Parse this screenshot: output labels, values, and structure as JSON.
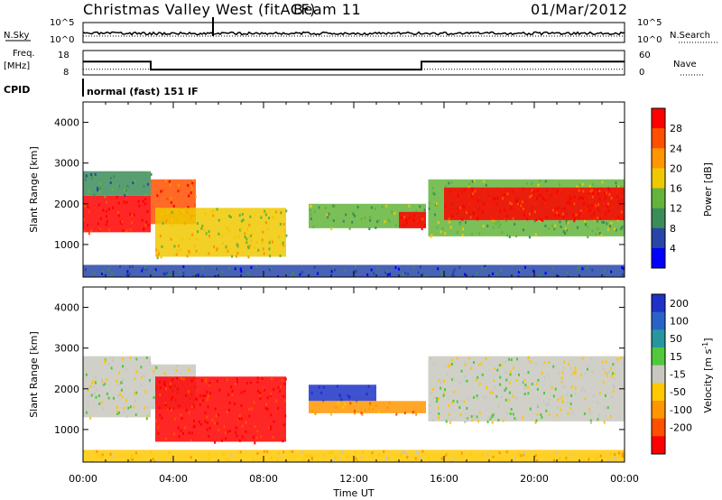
{
  "header": {
    "title": "Christmas Valley West (fitACF)",
    "beam": "Beam 11",
    "date": "01/Mar/2012",
    "cpid_label": "CPID",
    "cpid_value": "normal (fast) 151 IF"
  },
  "noise_panel": {
    "left_label": "N.Sky",
    "right_label": "N.Search",
    "left_ticks": [
      "10^5",
      "10^0"
    ],
    "right_ticks": [
      "10^5",
      "10^0"
    ]
  },
  "freq_panel": {
    "left_label_1": "Freq.",
    "left_label_2": "[MHz]",
    "right_label": "Nave",
    "left_ticks": [
      "18",
      "8"
    ],
    "right_ticks": [
      "60",
      "0"
    ],
    "freq_steps": [
      [
        0,
        13.5
      ],
      [
        3.0,
        10.2
      ],
      [
        15.0,
        13.5
      ],
      [
        24,
        13.5
      ]
    ],
    "nave_level": 14
  },
  "power_colorbar": {
    "label": "Power [dB]",
    "ticks": [
      "4",
      "8",
      "12",
      "16",
      "20",
      "24",
      "28"
    ],
    "colors": [
      "#0000ff",
      "#2846a8",
      "#3c8c5a",
      "#64b43c",
      "#f0c800",
      "#ff9600",
      "#ff5000",
      "#ff0000"
    ]
  },
  "velocity_colorbar": {
    "label": "Velocity [m s",
    "label_sup": "-1",
    "label_end": "]",
    "ticks": [
      "200",
      "100",
      "50",
      "15",
      "-15",
      "-50",
      "-100",
      "-200"
    ],
    "colors": [
      "#1e32c8",
      "#2864c8",
      "#2896a0",
      "#50c83c",
      "#c8c8c0",
      "#ffc800",
      "#ff9600",
      "#ff5000",
      "#ff0000"
    ]
  },
  "chart_data": [
    {
      "type": "heatmap",
      "name": "power",
      "ylabel": "Slant Range [km]",
      "xlabel": "",
      "xlim": [
        0,
        24
      ],
      "ylim": [
        200,
        4500
      ],
      "yticks": [
        "1000",
        "2000",
        "3000",
        "4000"
      ],
      "regions": [
        {
          "t0": 0.0,
          "t1": 3.0,
          "r0": 1300,
          "r1": 2200,
          "level": 7
        },
        {
          "t0": 0.0,
          "t1": 3.0,
          "r0": 2200,
          "r1": 2800,
          "level": 2
        },
        {
          "t0": 3.0,
          "t1": 5.0,
          "r0": 1500,
          "r1": 2600,
          "level": 6
        },
        {
          "t0": 3.2,
          "t1": 9.0,
          "r0": 700,
          "r1": 1900,
          "level": 4
        },
        {
          "t0": 10.0,
          "t1": 15.2,
          "r0": 1400,
          "r1": 2000,
          "level": 3
        },
        {
          "t0": 14.0,
          "t1": 15.2,
          "r0": 1400,
          "r1": 1800,
          "level": 7
        },
        {
          "t0": 15.3,
          "t1": 24.0,
          "r0": 1200,
          "r1": 2600,
          "level": 3
        },
        {
          "t0": 16.0,
          "t1": 24.0,
          "r0": 1600,
          "r1": 2400,
          "level": 7
        },
        {
          "t0": 0.0,
          "t1": 24.0,
          "r0": 200,
          "r1": 500,
          "level": 1
        }
      ]
    },
    {
      "type": "heatmap",
      "name": "velocity",
      "ylabel": "Slant Range [km]",
      "xlabel": "Time UT",
      "xlim": [
        0,
        24
      ],
      "ylim": [
        200,
        4500
      ],
      "yticks": [
        "1000",
        "2000",
        "3000",
        "4000"
      ],
      "xticks": [
        "00:00",
        "04:00",
        "08:00",
        "12:00",
        "16:00",
        "20:00",
        "00:00"
      ],
      "regions": [
        {
          "t0": 0.0,
          "t1": 3.0,
          "r0": 1300,
          "r1": 2800,
          "level": 4
        },
        {
          "t0": 3.0,
          "t1": 5.0,
          "r0": 1500,
          "r1": 2600,
          "level": 4
        },
        {
          "t0": 3.2,
          "t1": 9.0,
          "r0": 700,
          "r1": 2300,
          "level": 8
        },
        {
          "t0": 10.0,
          "t1": 13.0,
          "r0": 1700,
          "r1": 2100,
          "level": 0
        },
        {
          "t0": 10.0,
          "t1": 15.2,
          "r0": 1400,
          "r1": 1700,
          "level": 6
        },
        {
          "t0": 15.3,
          "t1": 24.0,
          "r0": 1200,
          "r1": 2800,
          "level": 4
        },
        {
          "t0": 0.0,
          "t1": 24.0,
          "r0": 200,
          "r1": 500,
          "level": 5
        }
      ]
    }
  ]
}
